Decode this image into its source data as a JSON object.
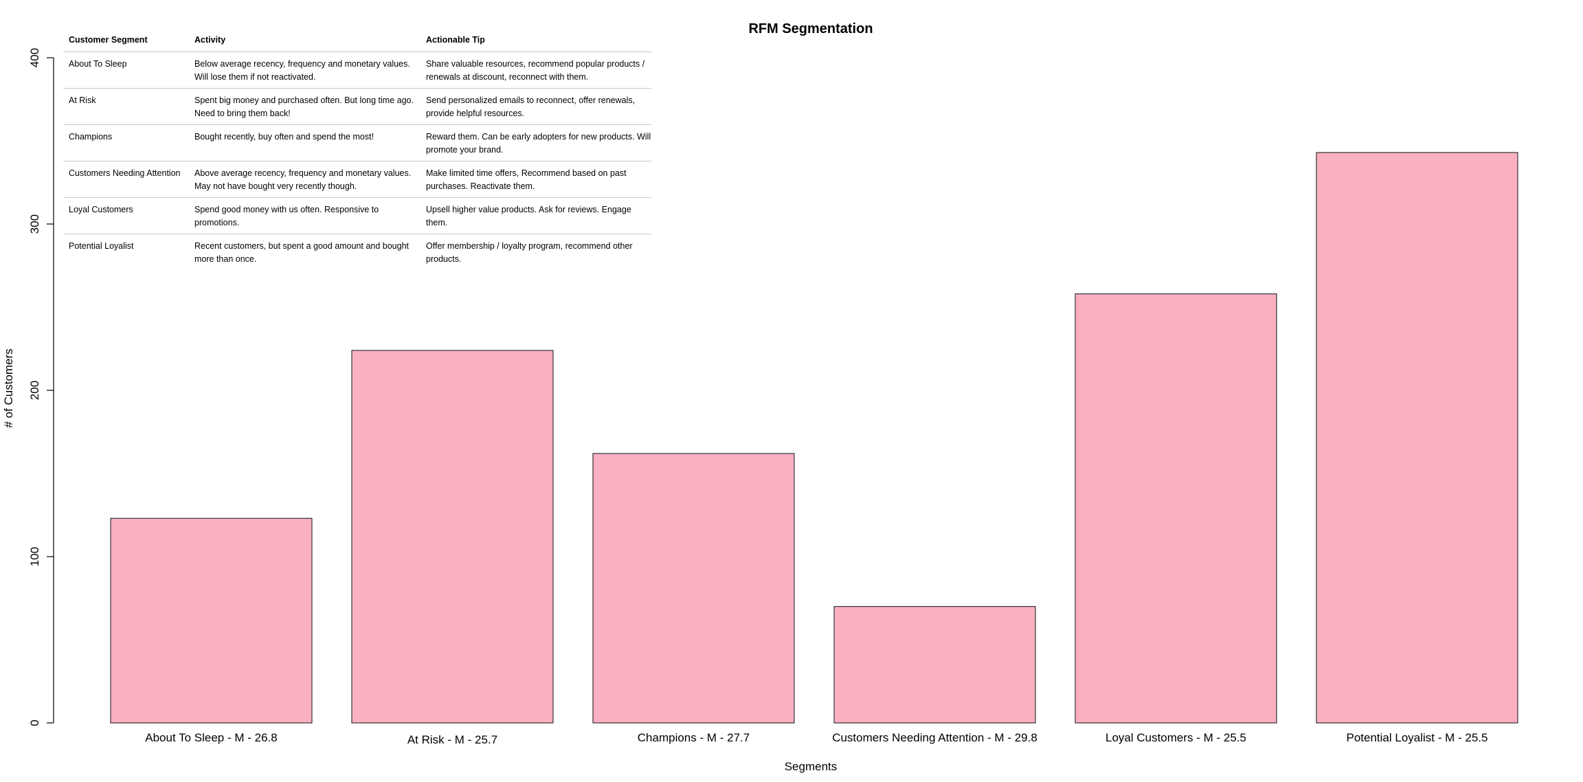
{
  "chart_data": {
    "type": "bar",
    "title": "RFM Segmentation",
    "xlabel": "Segments",
    "ylabel": "# of Customers",
    "ylim": [
      0,
      400
    ],
    "yticks": [
      "0",
      "100",
      "200",
      "300",
      "400"
    ],
    "categories": [
      "About To Sleep - M - 26.8",
      "At Risk - M - 25.7",
      "Champions - M - 27.7",
      "Customers Needing Attention - M - 29.8",
      "Loyal Customers - M - 25.5",
      "Potential Loyalist - M - 25.5"
    ],
    "values": [
      123,
      224,
      162,
      70,
      258,
      343
    ],
    "bar_color": "#fbb0c2",
    "bar_stroke": "#333333",
    "grid": false
  },
  "legend_table": {
    "headers": [
      "Customer Segment",
      "Activity",
      "Actionable Tip"
    ],
    "rows": [
      {
        "segment": "About To Sleep",
        "activity": "Below average recency, frequency and monetary values. Will lose them if not reactivated.",
        "tip": "Share valuable resources, recommend popular products / renewals at discount, reconnect with them."
      },
      {
        "segment": "At Risk",
        "activity": "Spent big money and purchased often. But long time ago. Need to bring them back!",
        "tip": "Send personalized emails to reconnect, offer renewals, provide helpful resources."
      },
      {
        "segment": "Champions",
        "activity": "Bought recently, buy often and spend the most!",
        "tip": "Reward them. Can be early adopters for new products. Will promote your brand."
      },
      {
        "segment": "Customers Needing Attention",
        "activity": "Above average recency, frequency and monetary values. May not have bought very recently though.",
        "tip": "Make limited time offers, Recommend based on past purchases. Reactivate them."
      },
      {
        "segment": "Loyal Customers",
        "activity": "Spend good money with us often. Responsive to promotions.",
        "tip": "Upsell higher value products. Ask for reviews. Engage them."
      },
      {
        "segment": "Potential Loyalist",
        "activity": "Recent customers, but spent a good amount and bought more than once.",
        "tip": "Offer membership / loyalty program, recommend other products."
      }
    ]
  }
}
